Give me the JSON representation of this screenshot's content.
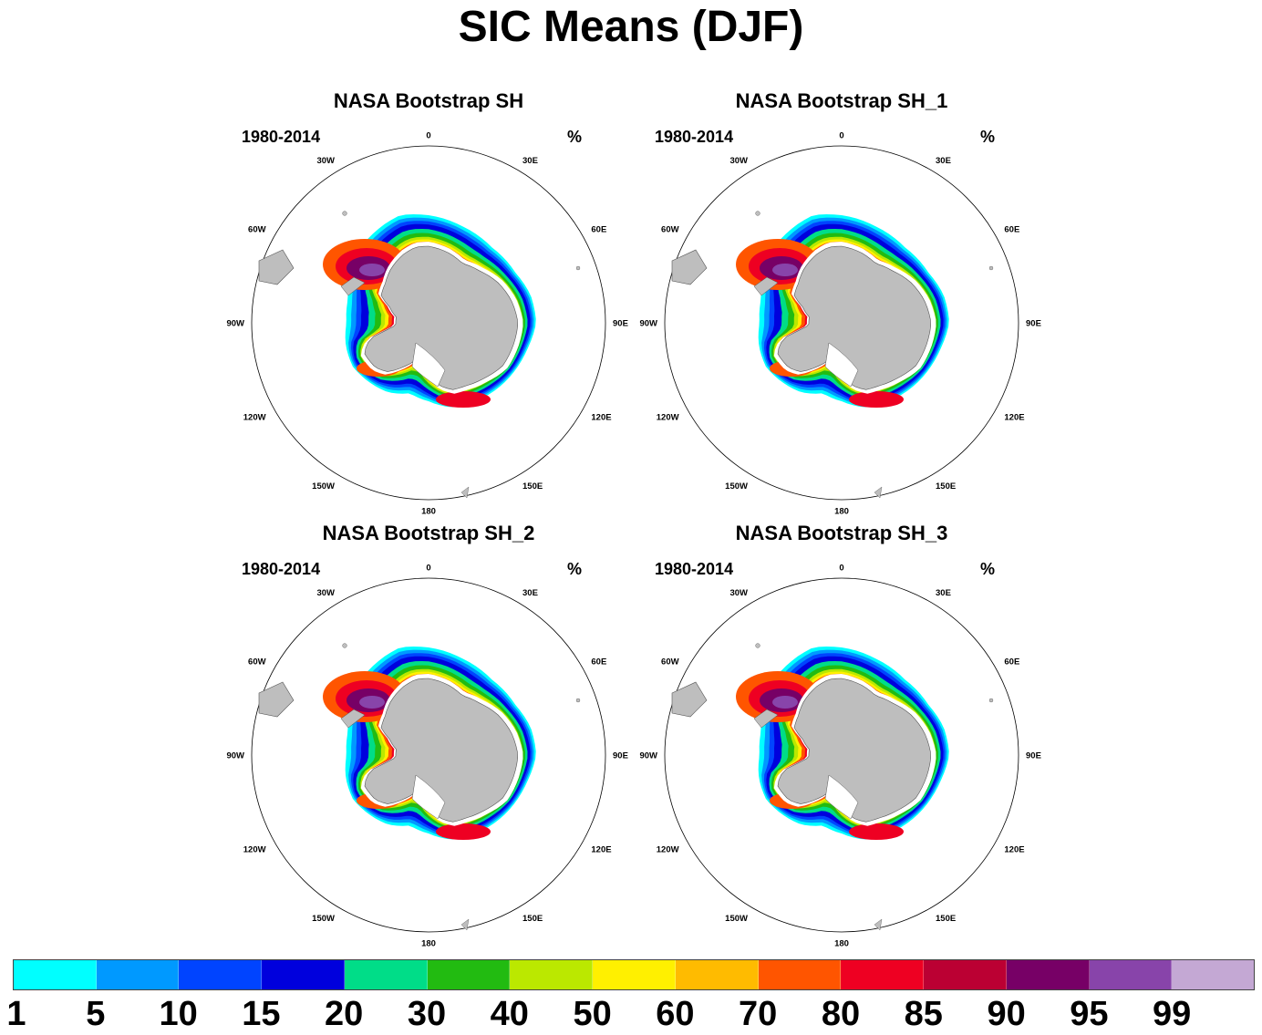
{
  "title": "SIC Means (DJF)",
  "panels": [
    {
      "title": "NASA Bootstrap SH",
      "period": "1980-2014",
      "unit": "%"
    },
    {
      "title": "NASA Bootstrap SH_1",
      "period": "1980-2014",
      "unit": "%"
    },
    {
      "title": "NASA Bootstrap SH_2",
      "period": "1980-2014",
      "unit": "%"
    },
    {
      "title": "NASA Bootstrap SH_3",
      "period": "1980-2014",
      "unit": "%"
    }
  ],
  "longitude_labels": [
    "0",
    "30E",
    "60E",
    "90E",
    "120E",
    "150E",
    "180",
    "150W",
    "120W",
    "90W",
    "60W",
    "30W"
  ],
  "colorbar": {
    "levels": [
      "1",
      "5",
      "10",
      "15",
      "20",
      "30",
      "40",
      "50",
      "60",
      "70",
      "80",
      "85",
      "90",
      "95",
      "99"
    ],
    "colors": [
      "#00ffff",
      "#0099ff",
      "#0044ff",
      "#0000dd",
      "#00dd88",
      "#22bb11",
      "#bbe800",
      "#fff000",
      "#ffbb00",
      "#ff5500",
      "#ee0022",
      "#bb0033",
      "#770066",
      "#8844aa",
      "#c4a8d4"
    ]
  },
  "colors": {
    "land": "#bebebe",
    "land_outline": "#555555"
  }
}
